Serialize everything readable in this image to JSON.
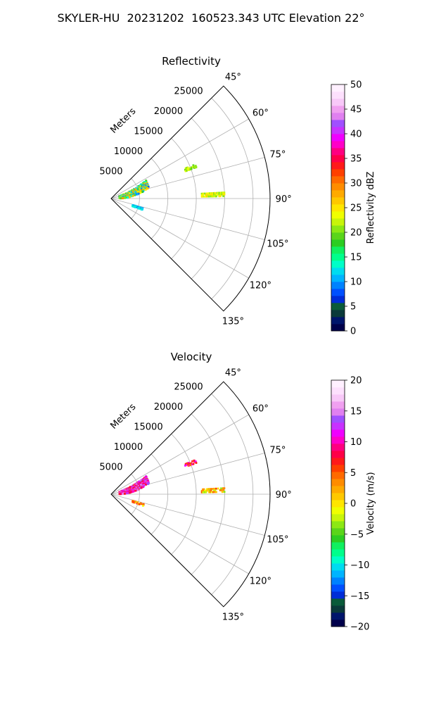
{
  "suptitle": "SKYLER-HU  20231202  160523.343 UTC Elevation 22°",
  "chart_data": [
    {
      "type": "heatmap",
      "subtype": "polar sector (PPI radar sweep)",
      "title": "Reflectivity",
      "range_label": "Meters",
      "azimuth_range_deg": [
        45,
        135
      ],
      "radial_range_m": [
        0,
        28000
      ],
      "azimuth_ticks": [
        "45°",
        "60°",
        "75°",
        "90°",
        "105°",
        "120°",
        "135°"
      ],
      "range_ticks": [
        "5000",
        "10000",
        "15000",
        "20000",
        "25000"
      ],
      "grid": true,
      "colorbar": {
        "label": "Reflectivity dBZ",
        "min": 0,
        "max": 50,
        "ticks": [
          "0",
          "5",
          "10",
          "15",
          "20",
          "25",
          "30",
          "35",
          "40",
          "45",
          "50"
        ],
        "colors": [
          "#00004b",
          "#00156b",
          "#0b3a3a",
          "#0a5b3a",
          "#002cd8",
          "#0050ff",
          "#0082ff",
          "#00b4ff",
          "#00dcf0",
          "#00ffc8",
          "#00ff8c",
          "#10f060",
          "#2ccd22",
          "#5ad51a",
          "#8ce814",
          "#c8f50a",
          "#f0ff00",
          "#ffe600",
          "#ffc800",
          "#ffaa00",
          "#ff8c00",
          "#ff6a00",
          "#ff4000",
          "#ff1a1a",
          "#ff0048",
          "#ff0080",
          "#ff00c8",
          "#f000ff",
          "#c832ff",
          "#a050ff",
          "#e080f0",
          "#f0a0f0",
          "#f8c8f8",
          "#fde0fd",
          "#fff0ff"
        ]
      },
      "echo_regions": [
        {
          "name": "main-echo",
          "az_deg": [
            62,
            90
          ],
          "range_m": [
            1500,
            7000
          ],
          "values": [
            8,
            30
          ]
        },
        {
          "name": "far-streak-75",
          "az_deg": [
            68,
            70
          ],
          "range_m": [
            14000,
            16000
          ],
          "values": [
            18,
            24
          ]
        },
        {
          "name": "far-streak-90",
          "az_deg": [
            87,
            89
          ],
          "range_m": [
            16000,
            20000
          ],
          "values": [
            20,
            26
          ]
        },
        {
          "name": "low-echo-105",
          "az_deg": [
            107,
            110
          ],
          "range_m": [
            4000,
            6000
          ],
          "values": [
            8,
            14
          ]
        }
      ]
    },
    {
      "type": "heatmap",
      "subtype": "polar sector (PPI radar sweep)",
      "title": "Velocity",
      "range_label": "Meters",
      "azimuth_range_deg": [
        45,
        135
      ],
      "radial_range_m": [
        0,
        28000
      ],
      "azimuth_ticks": [
        "45°",
        "60°",
        "75°",
        "90°",
        "105°",
        "120°",
        "135°"
      ],
      "range_ticks": [
        "5000",
        "10000",
        "15000",
        "20000",
        "25000"
      ],
      "grid": true,
      "colorbar": {
        "label": "Velocity (m/s)",
        "min": -20,
        "max": 20,
        "ticks": [
          "−20",
          "−15",
          "−10",
          "−5",
          "0",
          "5",
          "10",
          "15",
          "20"
        ],
        "colors": [
          "#00004b",
          "#00156b",
          "#0b3a3a",
          "#0a5b3a",
          "#002cd8",
          "#0050ff",
          "#0082ff",
          "#00b4ff",
          "#00dcf0",
          "#00ffc8",
          "#00ff8c",
          "#10f060",
          "#2ccd22",
          "#5ad51a",
          "#8ce814",
          "#c8f50a",
          "#f0ff00",
          "#ffe600",
          "#ffc800",
          "#ffaa00",
          "#ff8c00",
          "#ff6a00",
          "#ff4000",
          "#ff1a1a",
          "#ff0048",
          "#ff0080",
          "#ff00c8",
          "#f000ff",
          "#c832ff",
          "#a050ff",
          "#e080f0",
          "#f0a0f0",
          "#f8c8f8",
          "#fde0fd",
          "#fff0ff"
        ]
      },
      "echo_regions": [
        {
          "name": "main-echo",
          "az_deg": [
            62,
            90
          ],
          "range_m": [
            1500,
            7000
          ],
          "values": [
            6,
            16
          ]
        },
        {
          "name": "far-streak-75",
          "az_deg": [
            68,
            70
          ],
          "range_m": [
            14000,
            16000
          ],
          "values": [
            4,
            12
          ]
        },
        {
          "name": "far-streak-90",
          "az_deg": [
            87,
            89
          ],
          "range_m": [
            16000,
            20000
          ],
          "values": [
            -4,
            6
          ]
        },
        {
          "name": "low-echo-105",
          "az_deg": [
            107,
            110
          ],
          "range_m": [
            4000,
            6000
          ],
          "values": [
            -2,
            8
          ]
        }
      ]
    }
  ]
}
